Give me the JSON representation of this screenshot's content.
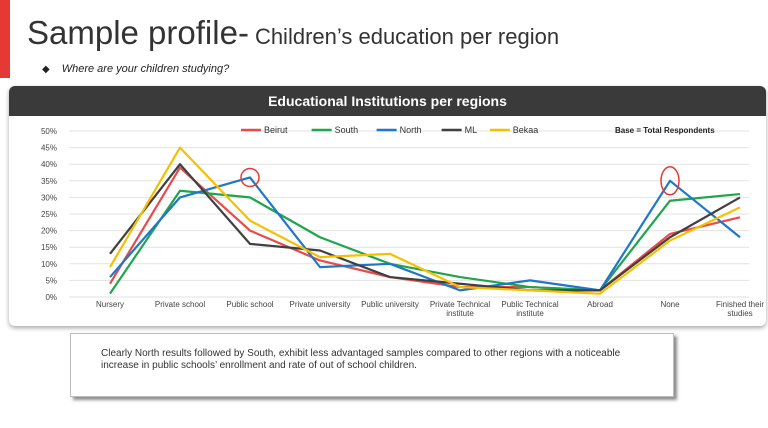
{
  "page": {
    "title_main": "Sample profile-",
    "title_sub": "Children’s education per region",
    "question": "Where are your children studying?",
    "bullet": "◆",
    "chart_header": "Educational Institutions per regions",
    "base_note": "Base = Total Respondents",
    "summary": "Clearly North results followed by South, exhibit less advantaged samples compared to other regions with a noticeable increase in public schools’ enrollment and rate of out of school children."
  },
  "colors": {
    "accent": "#e53935",
    "header_bg": "#3a3a3a"
  },
  "chart_data": {
    "type": "line",
    "title": "Educational Institutions per regions",
    "categories": [
      "Nursery",
      "Private school",
      "Public school",
      "Private university",
      "Public university",
      "Private Technical institute",
      "Public Technical institute",
      "Abroad",
      "None",
      "Finished their studies"
    ],
    "y_ticks": [
      "0%",
      "5%",
      "10%",
      "15%",
      "20%",
      "25%",
      "30%",
      "35%",
      "40%",
      "45%",
      "50%"
    ],
    "ylim": [
      0,
      50
    ],
    "legend_position": "top",
    "grid": true,
    "series": [
      {
        "name": "Beirut",
        "color": "#e84b4b",
        "values": [
          4,
          39,
          20,
          11,
          6,
          3,
          3,
          2,
          19,
          24
        ]
      },
      {
        "name": "South",
        "color": "#1fa54a",
        "values": [
          1,
          32,
          30,
          18,
          10,
          6,
          3,
          2,
          29,
          31
        ]
      },
      {
        "name": "North",
        "color": "#1f77c9",
        "values": [
          6,
          30,
          36,
          9,
          10,
          2,
          5,
          2,
          35,
          18
        ]
      },
      {
        "name": "ML",
        "color": "#404040",
        "values": [
          13,
          40,
          16,
          14,
          6,
          4,
          2,
          2,
          18,
          30
        ]
      },
      {
        "name": "Bekaa",
        "color": "#f5c000",
        "values": [
          9,
          45,
          23,
          12,
          13,
          3,
          2,
          1,
          17,
          27
        ]
      }
    ],
    "highlights": [
      {
        "series": "North",
        "category": "Public school"
      },
      {
        "series": "North",
        "category": "None"
      }
    ]
  }
}
